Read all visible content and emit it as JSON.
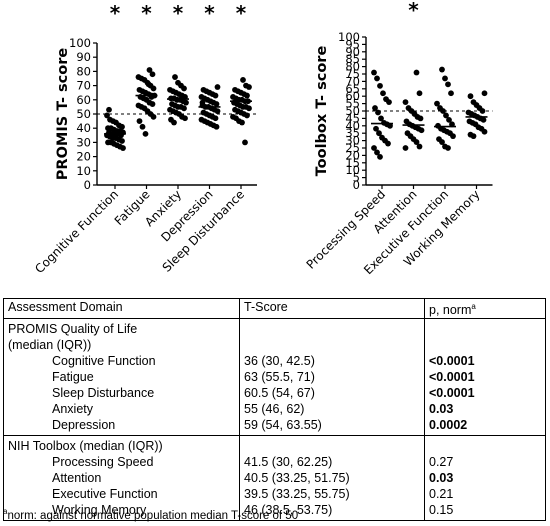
{
  "chart_data": [
    {
      "type": "scatter",
      "ylabel": "PROMIS T- score",
      "ylim": [
        0,
        100
      ],
      "yticks": [
        0,
        10,
        20,
        30,
        40,
        50,
        60,
        70,
        80,
        90,
        100
      ],
      "reference_line": 50,
      "categories": [
        "Cognitive Function",
        "Fatigue",
        "Anxiety",
        "Depression",
        "Sleep Disturbance"
      ],
      "significance_markers": [
        "*",
        "*",
        "*",
        "*",
        "*"
      ],
      "medians": [
        36,
        63,
        60.5,
        55,
        59
      ],
      "series": [
        {
          "values": [
            49,
            46,
            45,
            44,
            42,
            41,
            40,
            40,
            39,
            38,
            38,
            37,
            37,
            36,
            36,
            36,
            35,
            35,
            34,
            33,
            33,
            32,
            31,
            30,
            30,
            29,
            28,
            27,
            26,
            53
          ]
        },
        {
          "values": [
            81,
            78,
            76,
            75,
            74,
            72,
            70,
            68,
            67,
            66,
            65,
            64,
            63,
            63,
            62,
            61,
            60,
            58,
            57,
            56,
            55,
            54,
            52,
            50,
            48,
            45,
            41,
            36,
            71,
            62
          ]
        },
        {
          "values": [
            76,
            72,
            70,
            68,
            67,
            66,
            65,
            64,
            63,
            62,
            61,
            61,
            60,
            60,
            59,
            58,
            57,
            56,
            55,
            55,
            54,
            53,
            52,
            51,
            50,
            48,
            47,
            46,
            44,
            60
          ]
        },
        {
          "values": [
            69,
            67,
            66,
            65,
            64,
            63,
            62,
            61,
            60,
            59,
            58,
            57,
            56,
            55,
            55,
            54,
            53,
            52,
            51,
            50,
            49,
            48,
            47,
            46,
            45,
            44,
            43,
            42,
            41,
            58
          ]
        },
        {
          "values": [
            74,
            70,
            69,
            67,
            66,
            65,
            64,
            63,
            62,
            61,
            60,
            60,
            59,
            59,
            58,
            57,
            56,
            55,
            55,
            54,
            53,
            52,
            51,
            50,
            49,
            48,
            47,
            45,
            44,
            30
          ]
        }
      ]
    },
    {
      "type": "scatter",
      "ylabel": "Toolbox T- score",
      "ylim": [
        0,
        100
      ],
      "yticks": [
        0,
        5,
        10,
        15,
        20,
        25,
        30,
        35,
        40,
        45,
        50,
        55,
        60,
        65,
        70,
        75,
        80,
        85,
        90,
        95,
        100
      ],
      "reference_line": 50,
      "categories": [
        "Processing Speed",
        "Attention",
        "Executive Function",
        "Working Memory"
      ],
      "significance_markers": [
        "",
        "*",
        "",
        ""
      ],
      "medians": [
        41.5,
        40.5,
        39.5,
        46
      ],
      "series": [
        {
          "values": [
            76,
            72,
            67,
            62,
            58,
            56,
            52,
            49,
            45,
            42,
            41,
            40,
            38,
            35,
            32,
            30,
            28,
            25,
            22,
            19
          ]
        },
        {
          "values": [
            76,
            62,
            56,
            52,
            50,
            48,
            46,
            45,
            43,
            41,
            40,
            39,
            38,
            37,
            35,
            33,
            31,
            29,
            26,
            25
          ]
        },
        {
          "values": [
            78,
            72,
            68,
            62,
            55,
            52,
            50,
            47,
            44,
            41,
            40,
            38,
            37,
            36,
            35,
            33,
            31,
            29,
            26,
            25
          ]
        },
        {
          "values": [
            62,
            60,
            56,
            54,
            52,
            50,
            49,
            48,
            47,
            46,
            45,
            44,
            43,
            42,
            41,
            39,
            38,
            36,
            34,
            33
          ]
        }
      ]
    }
  ],
  "table": {
    "headers": [
      "Assessment Domain",
      "T-Score",
      "p, norm",
      "a"
    ],
    "promis_section_line1": "PROMIS Quality of Life",
    "promis_section_line2": "(median (IQR))",
    "promis_rows": [
      {
        "domain": "Cognitive Function",
        "score": "36 (30, 42.5)",
        "p": "<0.0001",
        "bold": true
      },
      {
        "domain": "Fatigue",
        "score": "63 (55.5, 71)",
        "p": "<0.0001",
        "bold": true
      },
      {
        "domain": "Sleep Disturbance",
        "score": "60.5 (54, 67)",
        "p": "<0.0001",
        "bold": true
      },
      {
        "domain": "Anxiety",
        "score": "55 (46, 62)",
        "p": "0.03",
        "bold": true
      },
      {
        "domain": "Depression",
        "score": "59 (54, 63.55)",
        "p": "0.0002",
        "bold": true
      }
    ],
    "nih_section": "NIH Toolbox (median (IQR))",
    "nih_rows": [
      {
        "domain": "Processing Speed",
        "score": "41.5 (30, 62.25)",
        "p": "0.27",
        "bold": false
      },
      {
        "domain": "Attention",
        "score": "40.5 (33.25, 51.75)",
        "p": "0.03",
        "bold": true
      },
      {
        "domain": "Executive Function",
        "score": "39.5 (33.25, 55.75)",
        "p": "0.21",
        "bold": false
      },
      {
        "domain": "Working Memory",
        "score": "46 (38.5, 53.75)",
        "p": "0.15",
        "bold": false
      }
    ]
  },
  "footnote": {
    "marker": "a",
    "text": "norm: against normative population median T-score of 50"
  }
}
